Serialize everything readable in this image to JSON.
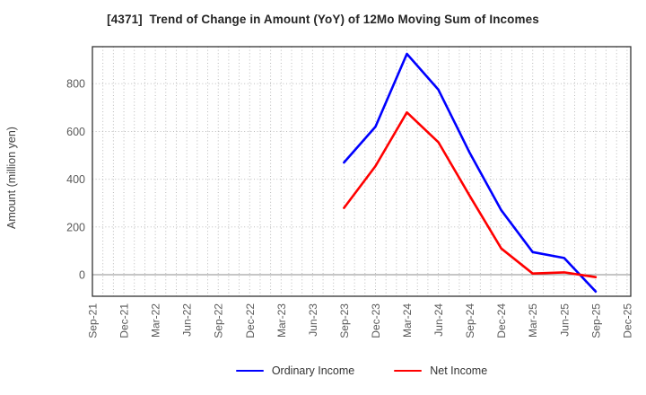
{
  "chart_data": {
    "type": "line",
    "title": "[4371]  Trend of Change in Amount (YoY) of 12Mo Moving Sum of Incomes",
    "xlabel": "",
    "ylabel": "Amount (million yen)",
    "x_tick_labels": [
      "Sep-21",
      "Dec-21",
      "Mar-22",
      "Jun-22",
      "Sep-22",
      "Dec-22",
      "Mar-23",
      "Jun-23",
      "Sep-23",
      "Dec-23",
      "Mar-24",
      "Jun-24",
      "Sep-24",
      "Dec-24",
      "Mar-25",
      "Jun-25",
      "Sep-25",
      "Dec-25"
    ],
    "yticks": [
      0,
      200,
      400,
      600,
      800
    ],
    "ylim": [
      -90,
      955
    ],
    "xlim_months": [
      0,
      51.35
    ],
    "grid": {
      "visible": true,
      "style": "dotted",
      "vertical_interval": "monthly",
      "zero_line": "solid"
    },
    "legend_position": "bottom-center",
    "series": [
      {
        "name": "Ordinary Income",
        "color": "#0000ff",
        "points": [
          {
            "x": "Sep-23",
            "y": 470
          },
          {
            "x": "Dec-23",
            "y": 620
          },
          {
            "x": "Mar-24",
            "y": 925
          },
          {
            "x": "Jun-24",
            "y": 775
          },
          {
            "x": "Sep-24",
            "y": 510
          },
          {
            "x": "Dec-24",
            "y": 270
          },
          {
            "x": "Mar-25",
            "y": 95
          },
          {
            "x": "Jun-25",
            "y": 70
          },
          {
            "x": "Sep-25",
            "y": -70
          }
        ]
      },
      {
        "name": "Net Income",
        "color": "#ff0000",
        "points": [
          {
            "x": "Sep-23",
            "y": 280
          },
          {
            "x": "Dec-23",
            "y": 455
          },
          {
            "x": "Mar-24",
            "y": 680
          },
          {
            "x": "Jun-24",
            "y": 555
          },
          {
            "x": "Sep-24",
            "y": 330
          },
          {
            "x": "Dec-24",
            "y": 110
          },
          {
            "x": "Mar-25",
            "y": 5
          },
          {
            "x": "Jun-25",
            "y": 10
          },
          {
            "x": "Sep-25",
            "y": -10
          }
        ]
      }
    ],
    "colors": {
      "grid": "#b3b3b3",
      "zero_line": "#8c8c8c",
      "spine": "#333333",
      "tick_label": "#595959",
      "title": "#262626"
    }
  }
}
